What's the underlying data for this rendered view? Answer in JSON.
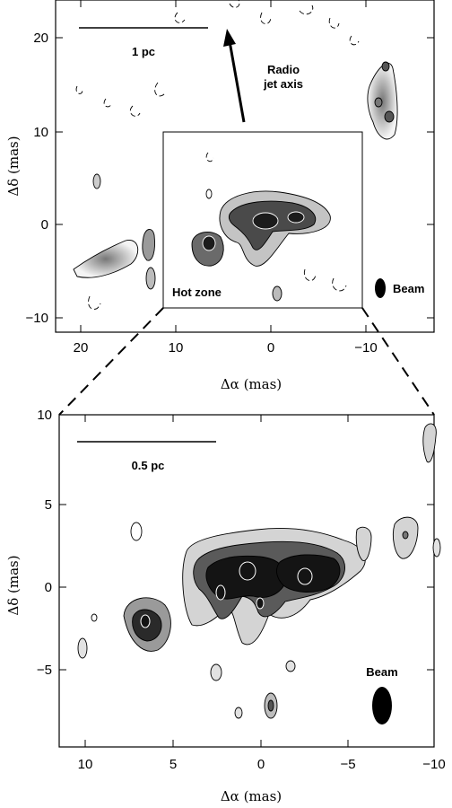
{
  "top_panel": {
    "xlabel": "Δα (mas)",
    "ylabel": "Δδ (mas)",
    "x_ticks": [
      "20",
      "10",
      "0",
      "−10"
    ],
    "y_ticks": [
      "20",
      "10",
      "0",
      "−10"
    ],
    "xlim": [
      24,
      -12
    ],
    "ylim": [
      -12,
      24
    ],
    "scale_bar_label": "1 pc",
    "jet_label_line1": "Radio",
    "jet_label_line2": "jet axis",
    "hot_zone_label": "Hot zone",
    "beam_label": "Beam"
  },
  "bottom_panel": {
    "xlabel": "Δα (mas)",
    "ylabel": "Δδ (mas)",
    "x_ticks": [
      "10",
      "5",
      "0",
      "−5",
      "−10"
    ],
    "y_ticks": [
      "10",
      "5",
      "0",
      "−5"
    ],
    "xlim": [
      12,
      -10
    ],
    "ylim": [
      -10,
      10
    ],
    "scale_bar_label": "0.5 pc",
    "beam_label": "Beam"
  },
  "colors": {
    "contour_fill_light": "#e8e8e8",
    "contour_fill_mid": "#9a9a9a",
    "contour_fill_dark": "#2a2a2a",
    "line": "#000000"
  }
}
